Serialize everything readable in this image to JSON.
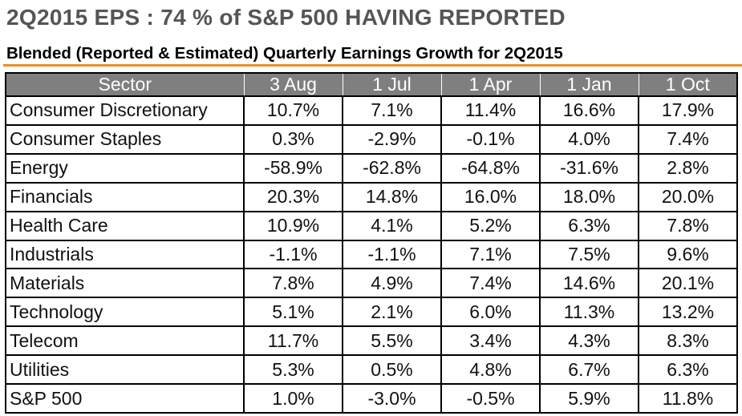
{
  "header": {
    "title": "2Q2015 EPS : 74 % of S&P 500 HAVING REPORTED",
    "subtitle": "Blended (Reported & Estimated) Quarterly Earnings Growth for 2Q2015"
  },
  "colors": {
    "accent_rule": "#f28c28",
    "header_bg": "#7f7f7f",
    "header_text": "#ffffff"
  },
  "table": {
    "columns": [
      "Sector",
      "3 Aug",
      "1 Jul",
      "1 Apr",
      "1 Jan",
      "1 Oct"
    ],
    "rows": [
      {
        "sector": "Consumer Discretionary",
        "values": [
          "10.7%",
          "7.1%",
          "11.4%",
          "16.6%",
          "17.9%"
        ]
      },
      {
        "sector": "Consumer Staples",
        "values": [
          "0.3%",
          "-2.9%",
          "-0.1%",
          "4.0%",
          "7.4%"
        ]
      },
      {
        "sector": "Energy",
        "values": [
          "-58.9%",
          "-62.8%",
          "-64.8%",
          "-31.6%",
          "2.8%"
        ]
      },
      {
        "sector": "Financials",
        "values": [
          "20.3%",
          "14.8%",
          "16.0%",
          "18.0%",
          "20.0%"
        ]
      },
      {
        "sector": "Health Care",
        "values": [
          "10.9%",
          "4.1%",
          "5.2%",
          "6.3%",
          "7.8%"
        ]
      },
      {
        "sector": "Industrials",
        "values": [
          "-1.1%",
          "-1.1%",
          "7.1%",
          "7.5%",
          "9.6%"
        ]
      },
      {
        "sector": "Materials",
        "values": [
          "7.8%",
          "4.9%",
          "7.4%",
          "14.6%",
          "20.1%"
        ]
      },
      {
        "sector": "Technology",
        "values": [
          "5.1%",
          "2.1%",
          "6.0%",
          "11.3%",
          "13.2%"
        ]
      },
      {
        "sector": "Telecom",
        "values": [
          "11.7%",
          "5.5%",
          "3.4%",
          "4.3%",
          "8.3%"
        ]
      },
      {
        "sector": "Utilities",
        "values": [
          "5.3%",
          "0.5%",
          "4.8%",
          "6.7%",
          "6.3%"
        ]
      },
      {
        "sector": "S&P 500",
        "values": [
          "1.0%",
          "-3.0%",
          "-0.5%",
          "5.9%",
          "11.8%"
        ]
      }
    ]
  }
}
